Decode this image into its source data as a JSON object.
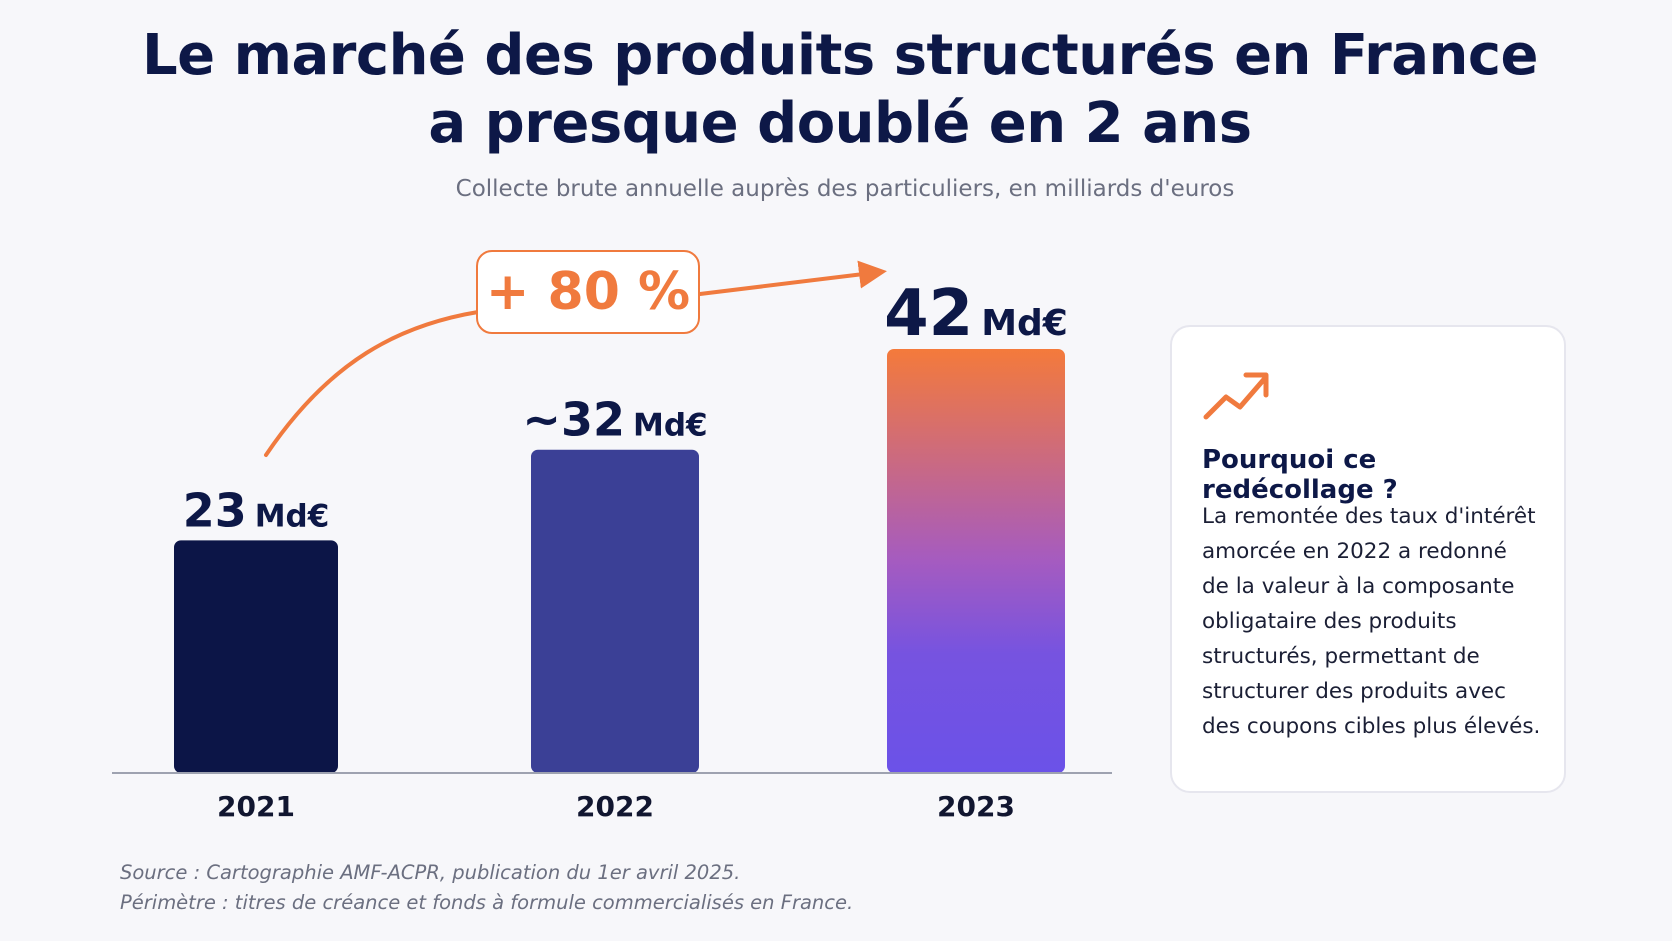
{
  "header": {
    "title_line1": "Le marché des produits structurés en France",
    "title_line2": "a presque doublé en 2 ans",
    "subtitle": "Collecte brute annuelle auprès des particuliers, en milliards d'euros"
  },
  "chart_data": {
    "type": "bar",
    "categories": [
      "2021",
      "2022",
      "2023"
    ],
    "values": [
      23,
      32,
      42
    ],
    "value_labels": [
      {
        "number": "23",
        "unit": "Md€"
      },
      {
        "number": "~32",
        "unit": "Md€"
      },
      {
        "number": "42",
        "unit": "Md€"
      }
    ],
    "growth_annotation": "+ 80 %",
    "bar_colors": [
      "#0c1547",
      "#3b4096",
      "gradient:#f47a3b-#6b52e8"
    ],
    "accent_color": "#f07a3e",
    "ylim": [
      0,
      42
    ],
    "grid": false
  },
  "card": {
    "icon": "trending-up-icon",
    "title": "Pourquoi ce redécollage ?",
    "lines": [
      "La remontée des taux d'intérêt",
      "amorcée en 2022 a redonné",
      "de la valeur à la composante",
      "obligataire des produits",
      "structurés, permettant de",
      "structurer des produits avec",
      "des coupons cibles plus élevés."
    ]
  },
  "footer": {
    "source": "Source : Cartographie AMF-ACPR, publication du 1er avril 2025.",
    "scope": "Périmètre : titres de créance et fonds à formule commercialisés en France."
  }
}
